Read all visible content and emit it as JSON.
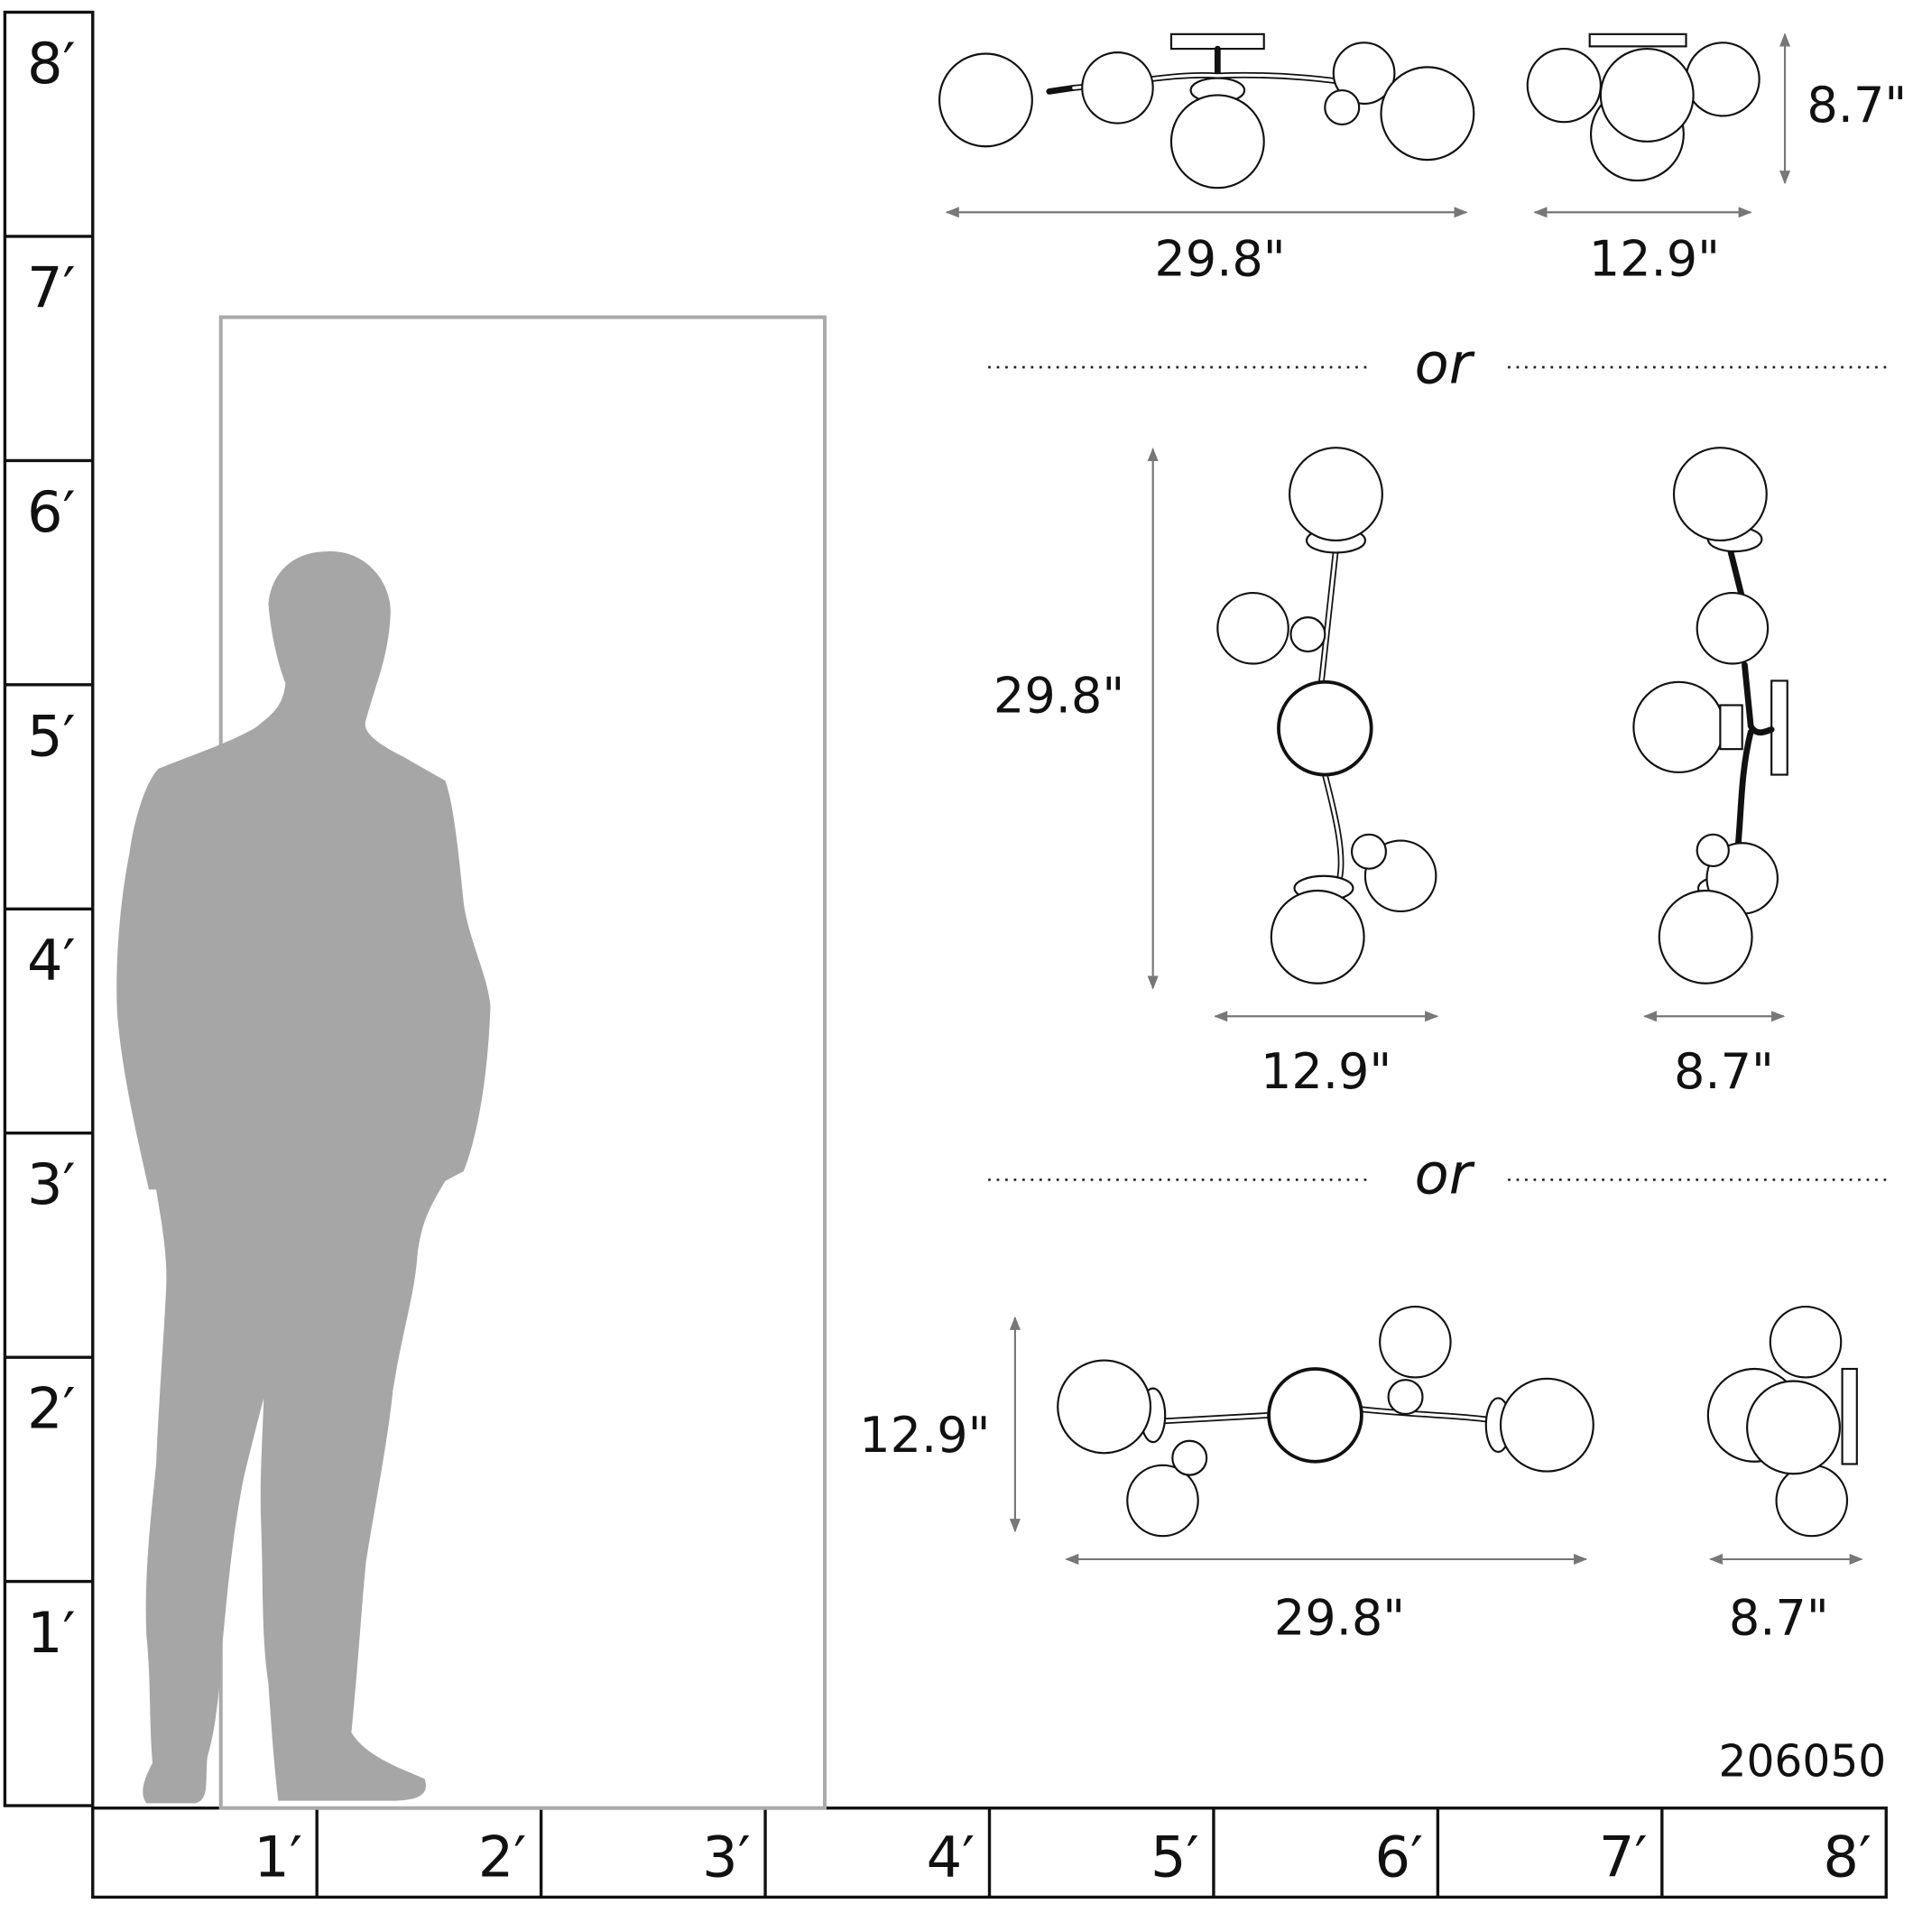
{
  "ruler_vertical": [
    "8′",
    "7′",
    "6′",
    "5′",
    "4′",
    "3′",
    "2′",
    "1′"
  ],
  "ruler_horizontal": [
    "1′",
    "2′",
    "3′",
    "4′",
    "5′",
    "6′",
    "7′",
    "8′"
  ],
  "separator_text": "or",
  "views": {
    "flush_mount": {
      "width_label": "29.8\"",
      "depth_label": "12.9\"",
      "height_label": "8.7\""
    },
    "vertical_sconce": {
      "height_label": "29.8\"",
      "width_label": "12.9\"",
      "depth_label": "8.7\""
    },
    "horizontal_sconce": {
      "height_label": "12.9\"",
      "width_label": "29.8\"",
      "depth_label": "8.7\""
    }
  },
  "product_code": "206050",
  "colors": {
    "silhouette": "#a6a6a6",
    "door": "#aaaaaa",
    "line": "#111111",
    "dimension_arrow": "#777777"
  }
}
